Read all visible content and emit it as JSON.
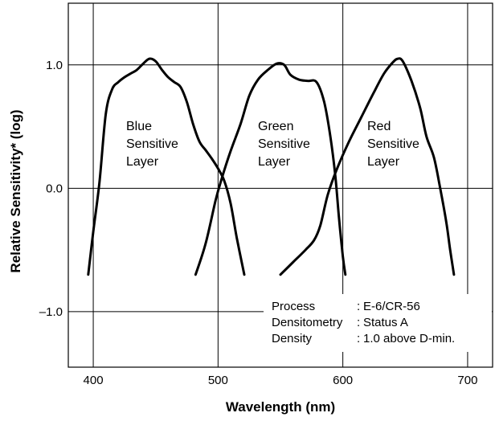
{
  "chart_data": {
    "type": "line",
    "xlabel": "Wavelength (nm)",
    "ylabel": "Relative Sensitivity* (log)",
    "xlim": [
      380,
      720
    ],
    "ylim": [
      -1.45,
      1.5
    ],
    "x_ticks": [
      "400",
      "500",
      "600",
      "700"
    ],
    "y_ticks": [
      "1.0",
      "0.0",
      "–1.0"
    ],
    "grid": true,
    "series": [
      {
        "name": "Blue Sensitive Layer",
        "label_lines": [
          "Blue",
          "Sensitive",
          "Layer"
        ],
        "points": [
          [
            396,
            -0.7
          ],
          [
            400,
            -0.35
          ],
          [
            405,
            0.05
          ],
          [
            410,
            0.6
          ],
          [
            415,
            0.8
          ],
          [
            420,
            0.86
          ],
          [
            425,
            0.9
          ],
          [
            430,
            0.93
          ],
          [
            435,
            0.96
          ],
          [
            440,
            1.01
          ],
          [
            445,
            1.05
          ],
          [
            450,
            1.03
          ],
          [
            455,
            0.96
          ],
          [
            460,
            0.9
          ],
          [
            465,
            0.86
          ],
          [
            470,
            0.82
          ],
          [
            475,
            0.7
          ],
          [
            480,
            0.52
          ],
          [
            485,
            0.38
          ],
          [
            490,
            0.31
          ],
          [
            495,
            0.24
          ],
          [
            500,
            0.16
          ],
          [
            505,
            0.06
          ],
          [
            510,
            -0.12
          ],
          [
            515,
            -0.4
          ],
          [
            521,
            -0.7
          ]
        ]
      },
      {
        "name": "Green Sensitive Layer",
        "label_lines": [
          "Green",
          "Sensitive",
          "Layer"
        ],
        "points": [
          [
            482,
            -0.7
          ],
          [
            490,
            -0.45
          ],
          [
            498,
            -0.1
          ],
          [
            503,
            0.08
          ],
          [
            510,
            0.3
          ],
          [
            518,
            0.52
          ],
          [
            525,
            0.75
          ],
          [
            532,
            0.88
          ],
          [
            540,
            0.96
          ],
          [
            547,
            1.01
          ],
          [
            553,
            1.0
          ],
          [
            558,
            0.92
          ],
          [
            565,
            0.88
          ],
          [
            572,
            0.87
          ],
          [
            579,
            0.86
          ],
          [
            585,
            0.7
          ],
          [
            590,
            0.42
          ],
          [
            594,
            0.1
          ],
          [
            597,
            -0.25
          ],
          [
            600,
            -0.55
          ],
          [
            602,
            -0.7
          ]
        ]
      },
      {
        "name": "Red Sensitive Layer",
        "label_lines": [
          "Red",
          "Sensitive",
          "Layer"
        ],
        "points": [
          [
            550,
            -0.7
          ],
          [
            560,
            -0.6
          ],
          [
            570,
            -0.5
          ],
          [
            577,
            -0.42
          ],
          [
            582,
            -0.3
          ],
          [
            588,
            -0.05
          ],
          [
            595,
            0.15
          ],
          [
            605,
            0.38
          ],
          [
            615,
            0.58
          ],
          [
            625,
            0.78
          ],
          [
            633,
            0.93
          ],
          [
            640,
            1.02
          ],
          [
            644,
            1.05
          ],
          [
            648,
            1.03
          ],
          [
            655,
            0.87
          ],
          [
            662,
            0.65
          ],
          [
            667,
            0.42
          ],
          [
            673,
            0.25
          ],
          [
            678,
            0.0
          ],
          [
            683,
            -0.28
          ],
          [
            686,
            -0.5
          ],
          [
            689,
            -0.7
          ]
        ]
      }
    ],
    "notes": [
      {
        "key": "Process",
        "sep": ":",
        "value": "E-6/CR-56"
      },
      {
        "key": "Densitometry",
        "sep": ":",
        "value": "Status A"
      },
      {
        "key": "Density",
        "sep": ":",
        "value": "1.0 above D-min."
      }
    ]
  }
}
